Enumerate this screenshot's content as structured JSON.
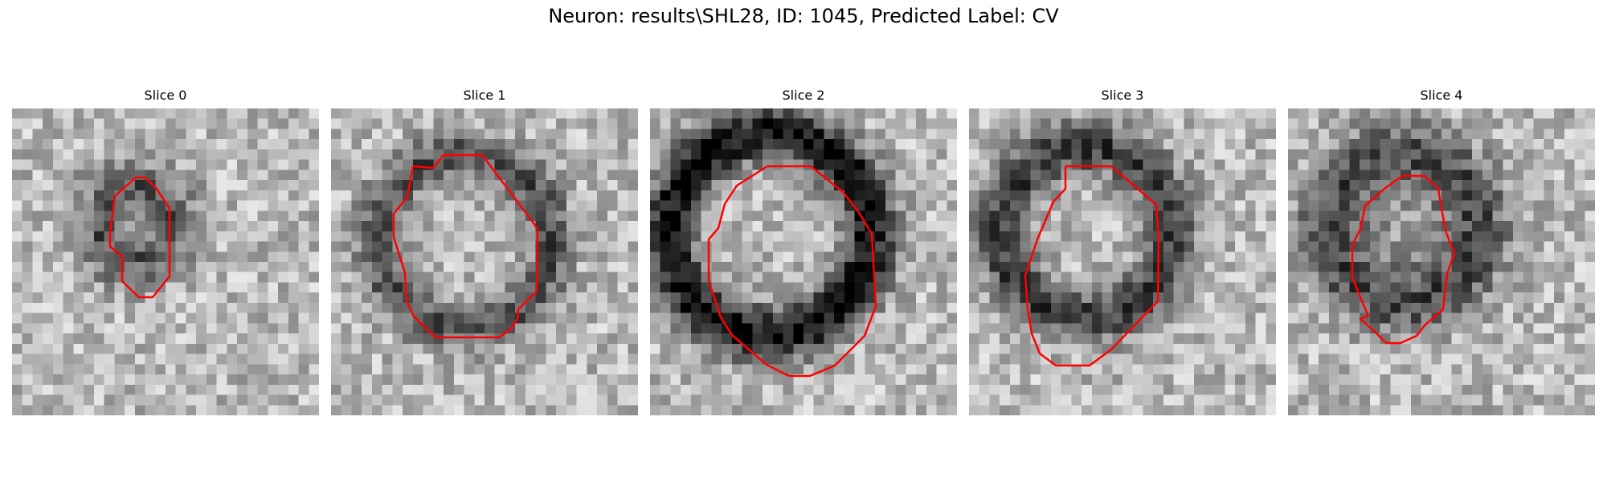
{
  "figure": {
    "title": "Neuron: results\\SHL28, ID: 1045, Predicted Label: CV"
  },
  "slices": [
    {
      "title": "Slice 0",
      "image": "grayscale-microscopy-slice",
      "contour_color": "#ff0000"
    },
    {
      "title": "Slice 1",
      "image": "grayscale-microscopy-slice",
      "contour_color": "#ff0000"
    },
    {
      "title": "Slice 2",
      "image": "grayscale-microscopy-slice",
      "contour_color": "#ff0000"
    },
    {
      "title": "Slice 3",
      "image": "grayscale-microscopy-slice",
      "contour_color": "#ff0000"
    },
    {
      "title": "Slice 4",
      "image": "grayscale-microscopy-slice",
      "contour_color": "#ff0000"
    }
  ]
}
